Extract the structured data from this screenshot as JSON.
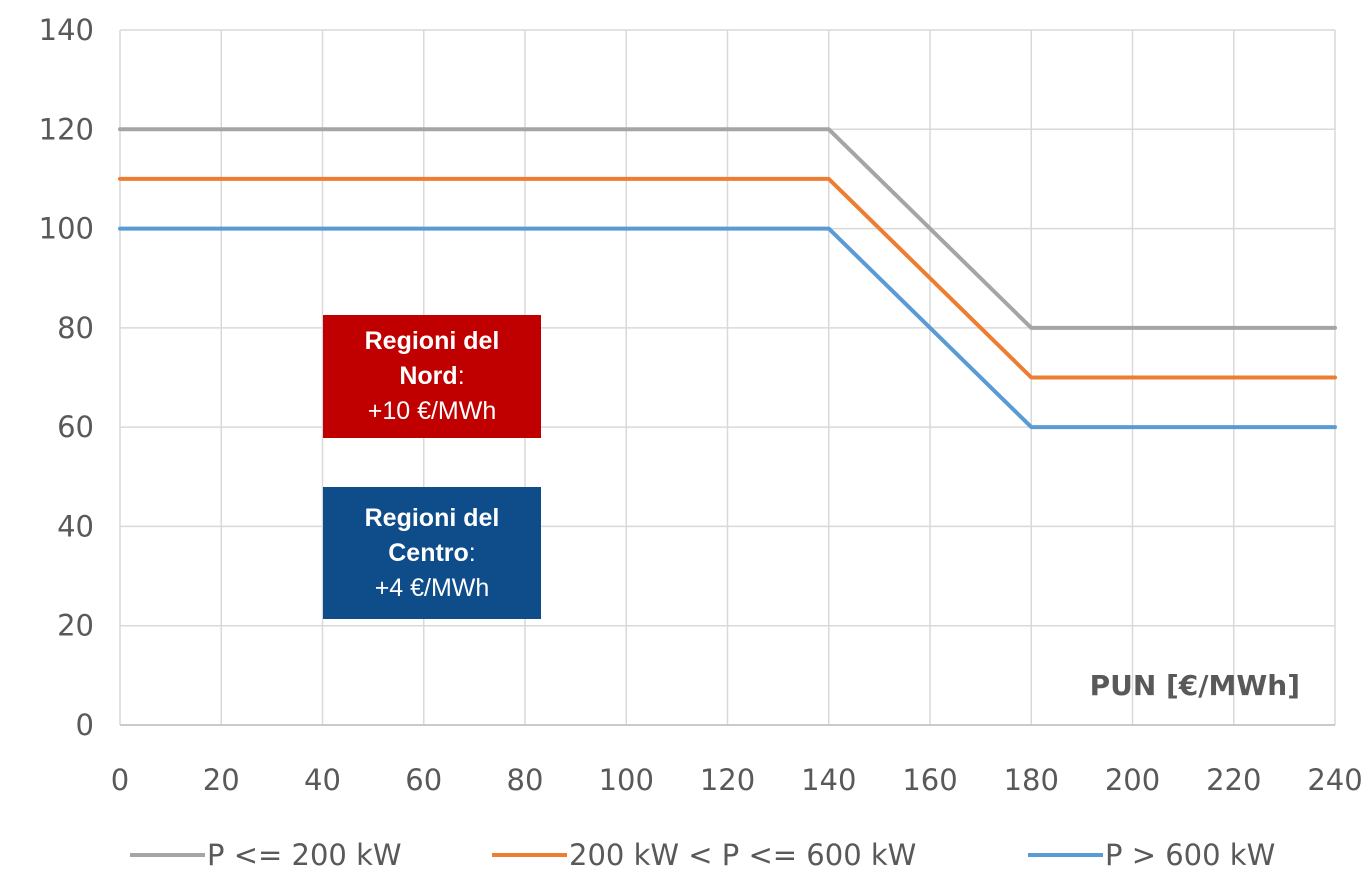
{
  "chart_data": {
    "type": "line",
    "xlabel": "PUN [€/MWh]",
    "xlim": [
      0,
      240
    ],
    "ylim": [
      0,
      140
    ],
    "x_ticks": [
      "0",
      "20",
      "40",
      "60",
      "80",
      "100",
      "120",
      "140",
      "160",
      "180",
      "200",
      "220",
      "240"
    ],
    "y_ticks": [
      "0",
      "20",
      "40",
      "60",
      "80",
      "100",
      "120",
      "140"
    ],
    "grid": true,
    "legend_position": "bottom",
    "series": [
      {
        "name": "P <= 200 kW",
        "color": "#A5A5A5",
        "x": [
          0,
          140,
          180,
          240
        ],
        "y": [
          120,
          120,
          80,
          80
        ]
      },
      {
        "name": "200 kW < P <= 600 kW",
        "color": "#ED7D31",
        "x": [
          0,
          140,
          180,
          240
        ],
        "y": [
          110,
          110,
          70,
          70
        ]
      },
      {
        "name": "P > 600 kW",
        "color": "#5B9BD5",
        "x": [
          0,
          140,
          180,
          240
        ],
        "y": [
          100,
          100,
          60,
          60
        ]
      }
    ],
    "annotations": [
      {
        "id": "nord",
        "line1": "Regioni del",
        "line2_bold": "Nord",
        "line2_rest": ":",
        "line3": "+10 €/MWh",
        "color": "#C00000"
      },
      {
        "id": "centro",
        "line1": "Regioni del",
        "line2_bold": "Centro",
        "line2_rest": ":",
        "line3": "+4 €/MWh",
        "color": "#0F4C8A"
      }
    ]
  }
}
